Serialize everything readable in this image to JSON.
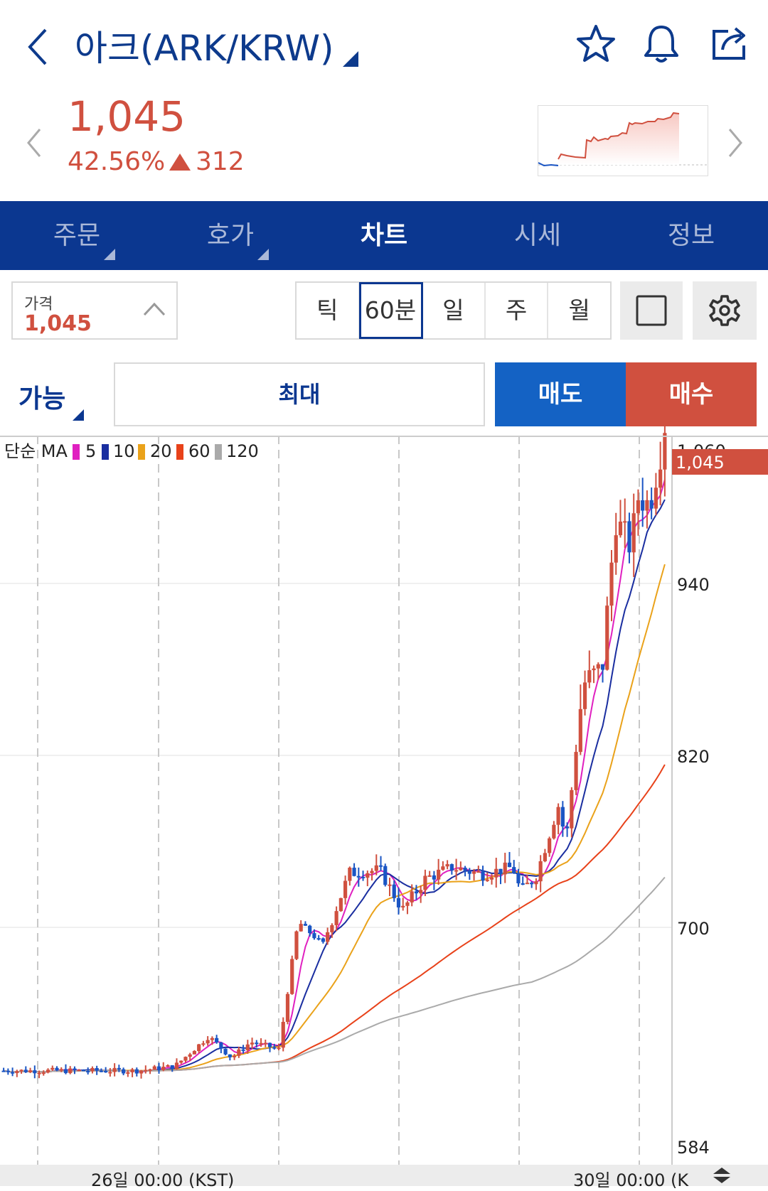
{
  "header": {
    "title": "아크(ARK/KRW)",
    "icons": [
      "back-icon",
      "star-icon",
      "bell-icon",
      "share-icon"
    ]
  },
  "ticker": {
    "price": "1,045",
    "change_pct": "42.56%",
    "change_value": "312",
    "direction": "up",
    "up_color": "#d0503f"
  },
  "tabs": [
    {
      "label": "주문",
      "has_dropdown": true,
      "active": false
    },
    {
      "label": "호가",
      "has_dropdown": true,
      "active": false
    },
    {
      "label": "차트",
      "has_dropdown": false,
      "active": true
    },
    {
      "label": "시세",
      "has_dropdown": false,
      "active": false
    },
    {
      "label": "정보",
      "has_dropdown": false,
      "active": false
    }
  ],
  "controls": {
    "price_label": "가격",
    "price_value": "1,045",
    "periods": [
      "틱",
      "60분",
      "일",
      "주",
      "월"
    ],
    "selected_period": "60분"
  },
  "order": {
    "available_label": "가능",
    "max_label": "최대",
    "sell_label": "매도",
    "buy_label": "매수",
    "sell_color": "#1462c4",
    "buy_color": "#d0503f"
  },
  "chart_data": {
    "type": "candlestick",
    "indicator_label": "단순 MA",
    "ma_series": [
      {
        "name": "5",
        "color": "#e020c0"
      },
      {
        "name": "10",
        "color": "#1a2ea0"
      },
      {
        "name": "20",
        "color": "#eaa21a"
      },
      {
        "name": "60",
        "color": "#e8421a"
      },
      {
        "name": "120",
        "color": "#aaaaaa"
      }
    ],
    "y_ticks": [
      "584",
      "700",
      "820",
      "940",
      "1,060"
    ],
    "current_price_label": "1,045",
    "x_ticks": [
      "26일 00:00 (KST)",
      "30일 00:00 (K"
    ],
    "ylim": [
      580,
      1070
    ],
    "up_color": "#d0503f",
    "down_color": "#1a55c4"
  }
}
